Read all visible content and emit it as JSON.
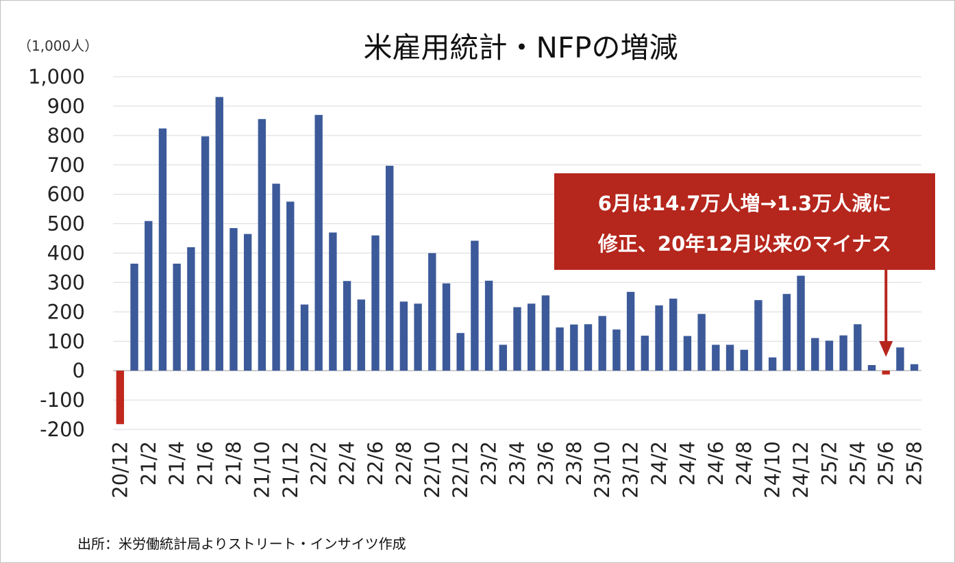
{
  "chart_data": {
    "type": "bar",
    "title": "米雇用統計・NFPの増減",
    "unit_label": "（1,000人）",
    "ylim": [
      -200,
      1000
    ],
    "yticks": [
      1000,
      900,
      800,
      700,
      600,
      500,
      400,
      300,
      200,
      100,
      0,
      -100,
      -200
    ],
    "ytick_labels": [
      "1,000",
      "900",
      "800",
      "700",
      "600",
      "500",
      "400",
      "300",
      "200",
      "100",
      "0",
      "-100",
      "-200"
    ],
    "grid": true,
    "categories": [
      "20/12",
      "21/1",
      "21/2",
      "21/3",
      "21/4",
      "21/5",
      "21/6",
      "21/7",
      "21/8",
      "21/9",
      "21/10",
      "21/11",
      "21/12",
      "22/1",
      "22/2",
      "22/3",
      "22/4",
      "22/5",
      "22/6",
      "22/7",
      "22/8",
      "22/9",
      "22/10",
      "22/11",
      "22/12",
      "23/1",
      "23/2",
      "23/3",
      "23/4",
      "23/5",
      "23/6",
      "23/7",
      "23/8",
      "23/9",
      "23/10",
      "23/11",
      "23/12",
      "24/1",
      "24/2",
      "24/3",
      "24/4",
      "24/5",
      "24/6",
      "24/7",
      "24/8",
      "24/9",
      "24/10",
      "24/11",
      "24/12",
      "25/1",
      "25/2",
      "25/3",
      "25/4",
      "25/5",
      "25/6",
      "25/7",
      "25/8"
    ],
    "values": [
      -182,
      364,
      509,
      824,
      364,
      420,
      797,
      931,
      485,
      465,
      856,
      636,
      575,
      225,
      870,
      470,
      305,
      242,
      460,
      697,
      235,
      228,
      400,
      297,
      128,
      442,
      306,
      88,
      216,
      228,
      256,
      147,
      157,
      158,
      186,
      140,
      268,
      119,
      222,
      245,
      118,
      193,
      88,
      88,
      71,
      240,
      45,
      261,
      323,
      111,
      102,
      120,
      158,
      19,
      -13,
      79,
      22
    ],
    "xtick_labels": [
      "20/12",
      "21/2",
      "21/4",
      "21/6",
      "21/8",
      "21/10",
      "21/12",
      "22/2",
      "22/4",
      "22/6",
      "22/8",
      "22/10",
      "22/12",
      "23/2",
      "23/4",
      "23/6",
      "23/8",
      "23/10",
      "23/12",
      "24/2",
      "24/4",
      "24/6",
      "24/8",
      "24/10",
      "24/12",
      "25/2",
      "25/4",
      "25/6",
      "25/8"
    ],
    "colors": {
      "positive": "#3c5a9a",
      "negative": "#c0281c",
      "callout_bg": "#b5261c",
      "grid": "#d9d9d9"
    },
    "annotation": {
      "lines": [
        "6月は14.7万人増→1.3万人減に",
        "修正、20年12月以来のマイナス"
      ],
      "target_category": "25/6"
    },
    "source": "出所：米労働統計局よりストリート・インサイツ作成"
  }
}
